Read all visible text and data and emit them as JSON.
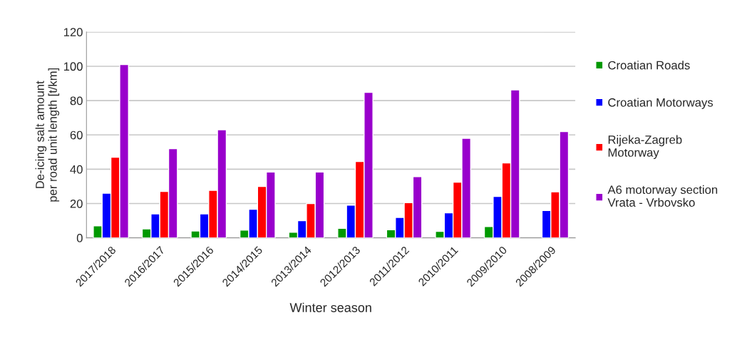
{
  "chart_data": {
    "type": "bar",
    "categories": [
      "2017/2018",
      "2016/2017",
      "2015/2016",
      "2014/2015",
      "2013/2014",
      "2012/2013",
      "2011/2012",
      "2010/2011",
      "2009/2010",
      "2008/2009"
    ],
    "series": [
      {
        "name": "Croatian Roads",
        "color": "#009900",
        "values": [
          7.0,
          5.2,
          4.0,
          4.5,
          3.3,
          5.6,
          4.7,
          3.8,
          6.6,
          null
        ]
      },
      {
        "name": "Croatian Motorways",
        "color": "#0000ff",
        "values": [
          26,
          14,
          14,
          16.7,
          10,
          19,
          11.9,
          14.6,
          24.1,
          15.9
        ]
      },
      {
        "name": "Rijeka-Zagreb\nMotorway",
        "color": "#ff0000",
        "values": [
          47,
          27,
          27.7,
          30,
          20,
          44.5,
          20.5,
          32.5,
          43.7,
          26.8
        ]
      },
      {
        "name": "A6 motorway section\nVrata - Vrbovsko",
        "color": "#9900cc",
        "values": [
          101,
          52,
          63,
          38.4,
          38.4,
          84.8,
          35.7,
          58,
          86.2,
          61.9
        ]
      }
    ],
    "xlabel": "Winter season",
    "ylabel": "De-icing salt amount\nper road unit length [t/km]",
    "ylim": [
      0,
      120
    ],
    "yticks": [
      0,
      20,
      40,
      60,
      80,
      100,
      120
    ],
    "grid": "y",
    "legend": "right"
  }
}
